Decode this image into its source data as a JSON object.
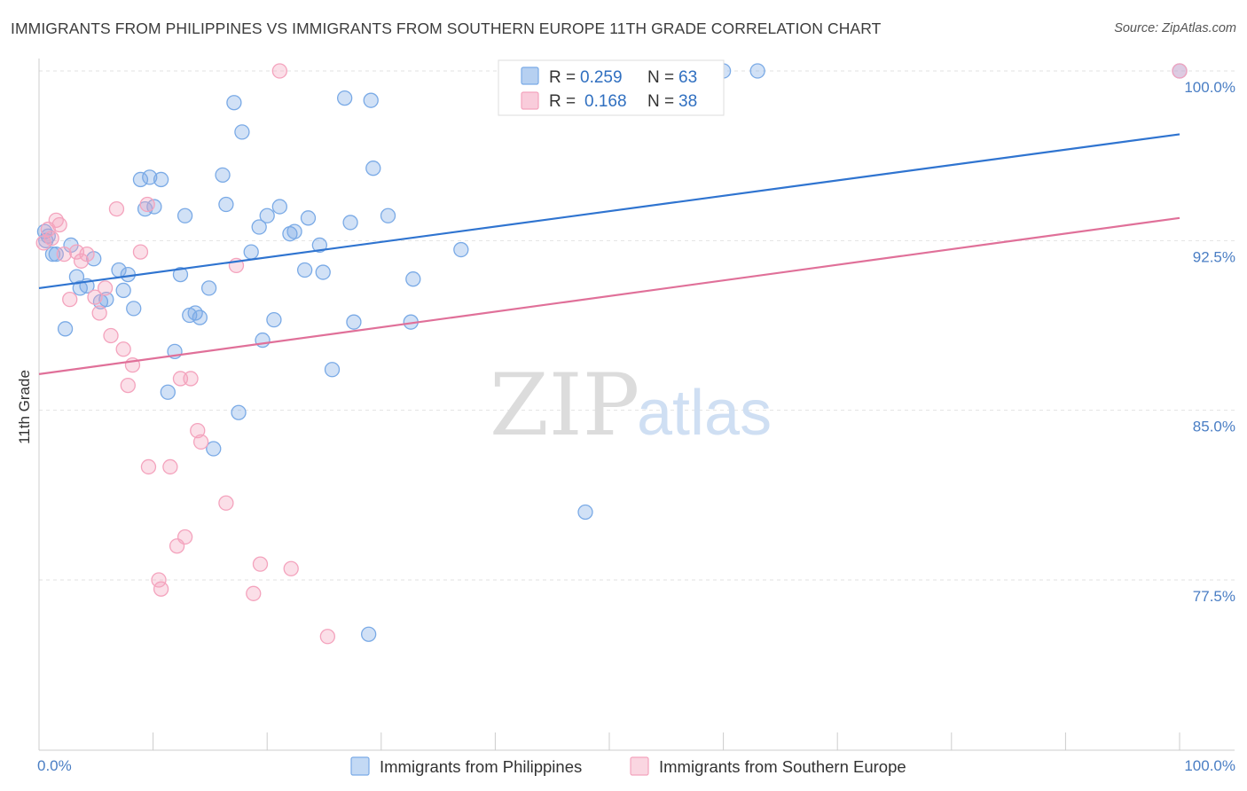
{
  "title": "IMMIGRANTS FROM PHILIPPINES VS IMMIGRANTS FROM SOUTHERN EUROPE 11TH GRADE CORRELATION CHART",
  "source": "Source: ZipAtlas.com",
  "watermark": {
    "zip": "ZIP",
    "atlas": "atlas"
  },
  "legend": {
    "r_label": "R =",
    "n_label": "N =",
    "entries": [
      {
        "r": "0.259",
        "n": "63",
        "color": "#7aaae6"
      },
      {
        "r": "0.168",
        "n": "38",
        "color": "#f4a3bd"
      }
    ]
  },
  "chart_data": {
    "type": "scatter",
    "ylabel": "11th Grade",
    "xlim": [
      0,
      100
    ],
    "ylim": [
      70.0,
      101.5
    ],
    "x_tick_labels": [
      {
        "value": 0,
        "label": "0.0%"
      },
      {
        "value": 100,
        "label": "100.0%"
      }
    ],
    "y_ticks": [
      {
        "value": 100.0,
        "label": "100.0%"
      },
      {
        "value": 92.5,
        "label": "92.5%"
      },
      {
        "value": 85.0,
        "label": "85.0%"
      },
      {
        "value": 77.5,
        "label": "77.5%"
      }
    ],
    "grid": "horizontal dashed",
    "series": [
      {
        "name": "Immigrants from Philippines",
        "color": "#7aaae6",
        "line_color": "#2f74d0",
        "trend": {
          "x": [
            0,
            100
          ],
          "y": [
            90.4,
            97.2
          ]
        },
        "points": [
          [
            0.5,
            92.9
          ],
          [
            0.6,
            92.5
          ],
          [
            0.8,
            92.7
          ],
          [
            1.2,
            91.9
          ],
          [
            1.5,
            91.9
          ],
          [
            2.3,
            88.6
          ],
          [
            2.8,
            92.3
          ],
          [
            3.3,
            90.9
          ],
          [
            3.6,
            90.4
          ],
          [
            4.2,
            90.5
          ],
          [
            4.8,
            91.7
          ],
          [
            5.4,
            89.8
          ],
          [
            5.9,
            89.9
          ],
          [
            7.0,
            91.2
          ],
          [
            7.4,
            90.3
          ],
          [
            7.8,
            91.0
          ],
          [
            8.3,
            89.5
          ],
          [
            8.9,
            95.2
          ],
          [
            9.3,
            93.9
          ],
          [
            9.7,
            95.3
          ],
          [
            10.1,
            94.0
          ],
          [
            10.7,
            95.2
          ],
          [
            11.3,
            85.8
          ],
          [
            11.9,
            87.6
          ],
          [
            12.4,
            91.0
          ],
          [
            12.8,
            93.6
          ],
          [
            13.2,
            89.2
          ],
          [
            13.7,
            89.3
          ],
          [
            14.1,
            89.1
          ],
          [
            14.9,
            90.4
          ],
          [
            15.3,
            83.3
          ],
          [
            16.1,
            95.4
          ],
          [
            16.4,
            94.1
          ],
          [
            17.1,
            98.6
          ],
          [
            17.5,
            84.9
          ],
          [
            17.8,
            97.3
          ],
          [
            18.6,
            92.0
          ],
          [
            19.3,
            93.1
          ],
          [
            19.6,
            88.1
          ],
          [
            20.0,
            93.6
          ],
          [
            20.6,
            89.0
          ],
          [
            21.1,
            94.0
          ],
          [
            22.0,
            92.8
          ],
          [
            22.4,
            92.9
          ],
          [
            23.3,
            91.2
          ],
          [
            23.6,
            93.5
          ],
          [
            24.9,
            91.1
          ],
          [
            24.6,
            92.3
          ],
          [
            25.7,
            86.8
          ],
          [
            26.8,
            98.8
          ],
          [
            27.3,
            93.3
          ],
          [
            27.6,
            88.9
          ],
          [
            28.9,
            75.1
          ],
          [
            29.1,
            98.7
          ],
          [
            29.3,
            95.7
          ],
          [
            30.6,
            93.6
          ],
          [
            32.6,
            88.9
          ],
          [
            32.8,
            90.8
          ],
          [
            37.0,
            92.1
          ],
          [
            47.9,
            80.5
          ],
          [
            60.0,
            100.0
          ],
          [
            63.0,
            100.0
          ],
          [
            100.0,
            100.0
          ]
        ]
      },
      {
        "name": "Immigrants from Southern Europe",
        "color": "#f4a3bd",
        "line_color": "#e07099",
        "trend": {
          "x": [
            0,
            100
          ],
          "y": [
            86.6,
            93.5
          ]
        },
        "points": [
          [
            0.4,
            92.4
          ],
          [
            0.8,
            93.0
          ],
          [
            1.1,
            92.6
          ],
          [
            1.5,
            93.4
          ],
          [
            1.8,
            93.2
          ],
          [
            2.2,
            91.9
          ],
          [
            2.7,
            89.9
          ],
          [
            3.3,
            92.0
          ],
          [
            3.7,
            91.6
          ],
          [
            4.2,
            91.9
          ],
          [
            4.9,
            90.0
          ],
          [
            5.3,
            89.3
          ],
          [
            5.8,
            90.4
          ],
          [
            6.3,
            88.3
          ],
          [
            6.8,
            93.9
          ],
          [
            7.4,
            87.7
          ],
          [
            7.8,
            86.1
          ],
          [
            8.2,
            87.0
          ],
          [
            8.9,
            92.0
          ],
          [
            9.5,
            94.1
          ],
          [
            9.6,
            82.5
          ],
          [
            10.5,
            77.5
          ],
          [
            10.7,
            77.1
          ],
          [
            11.5,
            82.5
          ],
          [
            12.1,
            79.0
          ],
          [
            12.4,
            86.4
          ],
          [
            12.8,
            79.4
          ],
          [
            13.3,
            86.4
          ],
          [
            13.9,
            84.1
          ],
          [
            14.2,
            83.6
          ],
          [
            16.4,
            80.9
          ],
          [
            17.3,
            91.4
          ],
          [
            18.8,
            76.9
          ],
          [
            19.4,
            78.2
          ],
          [
            21.1,
            100.0
          ],
          [
            22.1,
            78.0
          ],
          [
            25.3,
            75.0
          ],
          [
            100.0,
            100.0
          ]
        ]
      }
    ]
  }
}
